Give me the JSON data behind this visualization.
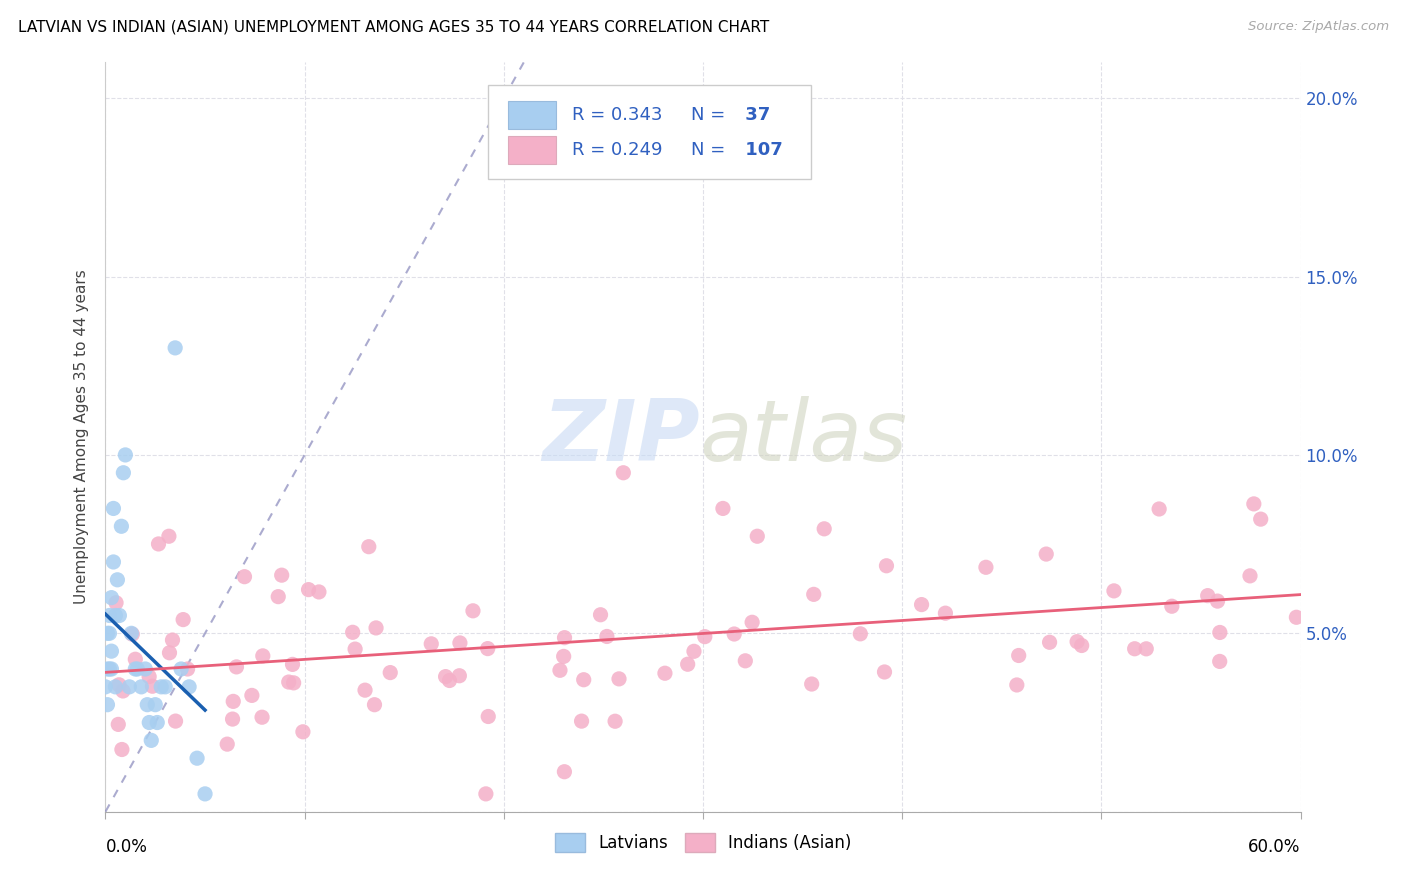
{
  "title": "LATVIAN VS INDIAN (ASIAN) UNEMPLOYMENT AMONG AGES 35 TO 44 YEARS CORRELATION CHART",
  "source": "Source: ZipAtlas.com",
  "ylabel": "Unemployment Among Ages 35 to 44 years",
  "xlim": [
    0.0,
    0.6
  ],
  "ylim": [
    0.0,
    0.21
  ],
  "R_latvian": "0.343",
  "N_latvian": "37",
  "R_indian": "0.249",
  "N_indian": "107",
  "latvian_color": "#a8cef0",
  "indian_color": "#f4b0c8",
  "latvian_line_color": "#1a5fb0",
  "indian_line_color": "#e8607a",
  "legend_latvians": "Latvians",
  "legend_indians": "Indians (Asian)",
  "legend_text_color": "#3060c0",
  "diag_line_color": "#8888cc",
  "right_axis_color": "#3060c0",
  "watermark_zip_color": "#c8daf4",
  "watermark_atlas_color": "#d0d4c0"
}
